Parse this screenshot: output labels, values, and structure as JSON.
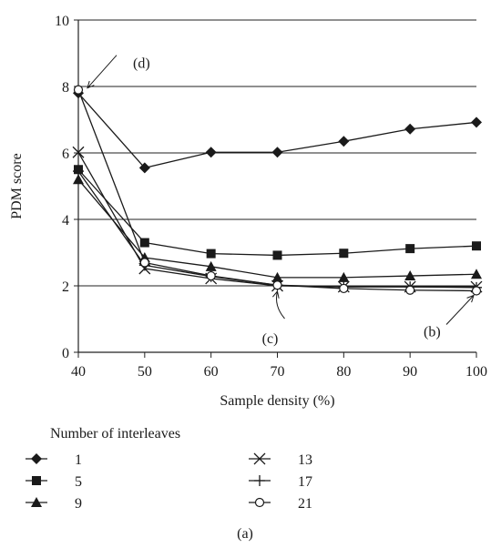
{
  "chart_data": {
    "type": "line",
    "xlabel": "Sample density (%)",
    "ylabel": "PDM score",
    "x": [
      40,
      50,
      60,
      70,
      80,
      90,
      100
    ],
    "xlim": [
      40,
      100
    ],
    "ylim": [
      0,
      10
    ],
    "x_ticks": [
      "40",
      "50",
      "60",
      "70",
      "80",
      "90",
      "100"
    ],
    "y_ticks": [
      "0",
      "2",
      "4",
      "6",
      "8",
      "10"
    ],
    "grid": "horizontal",
    "legend_title": "Number of interleaves",
    "legend_placement": "bottom",
    "caption": "(a)",
    "series": [
      {
        "name": "1",
        "marker": "diamond",
        "values": [
          7.8,
          5.55,
          6.02,
          6.02,
          6.35,
          6.72,
          6.92
        ]
      },
      {
        "name": "5",
        "marker": "square",
        "values": [
          5.5,
          3.3,
          2.97,
          2.92,
          2.98,
          3.12,
          3.2
        ]
      },
      {
        "name": "9",
        "marker": "triangle",
        "values": [
          5.2,
          2.85,
          2.58,
          2.25,
          2.25,
          2.3,
          2.35
        ]
      },
      {
        "name": "13",
        "marker": "x",
        "values": [
          6.02,
          2.52,
          2.22,
          2.0,
          1.97,
          1.97,
          1.97
        ]
      },
      {
        "name": "17",
        "marker": "plus",
        "values": [
          5.45,
          2.62,
          2.28,
          2.02,
          1.97,
          1.97,
          1.95
        ]
      },
      {
        "name": "21",
        "marker": "circle",
        "values": [
          7.9,
          2.7,
          2.3,
          2.02,
          1.92,
          1.87,
          1.85
        ]
      }
    ],
    "annotations": [
      {
        "label": "(d)",
        "x": 40,
        "y": 7.9
      },
      {
        "label": "(c)",
        "x": 70,
        "y": 2.0
      },
      {
        "label": "(b)",
        "x": 100,
        "y": 1.85
      }
    ]
  }
}
